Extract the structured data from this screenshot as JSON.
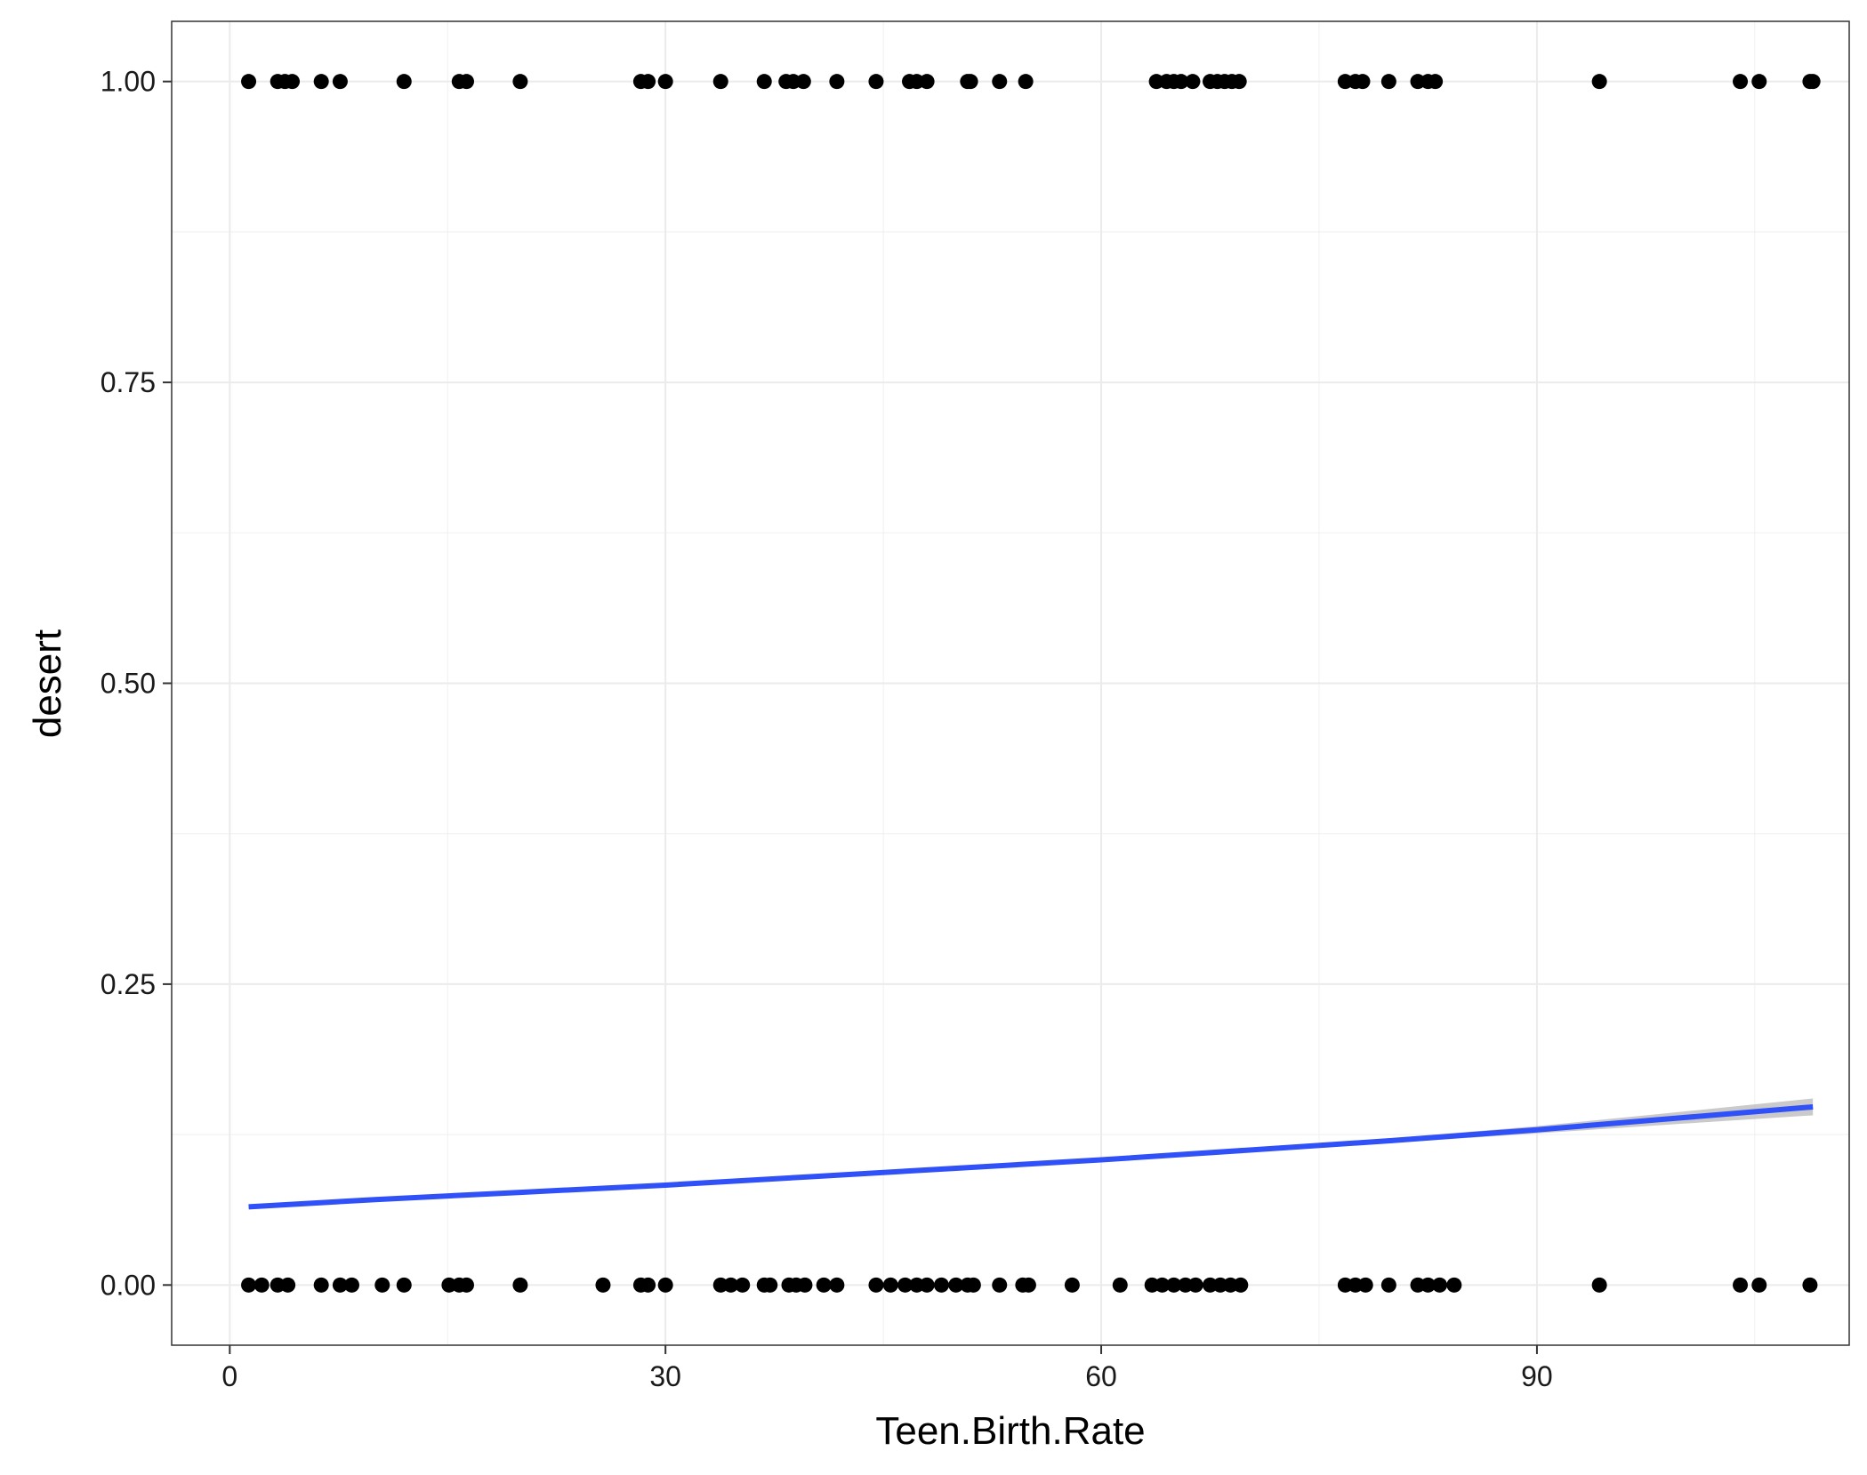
{
  "chart_data": {
    "type": "scatter",
    "xlabel": "Teen.Birth.Rate",
    "ylabel": "desert",
    "xlim": [
      -4,
      111.5
    ],
    "ylim": [
      -0.05,
      1.05
    ],
    "x_ticks": [
      0,
      30,
      60,
      90
    ],
    "x_tick_labels": [
      "0",
      "30",
      "60",
      "90"
    ],
    "y_ticks": [
      0,
      0.25,
      0.5,
      0.75,
      1.0
    ],
    "y_tick_labels": [
      "0.00",
      "0.25",
      "0.50",
      "0.75",
      "1.00"
    ],
    "grid": true,
    "legend": "none",
    "colors": {
      "points": "#000000",
      "fit_line": "#3050f8",
      "band": "#bdbdbd",
      "grid": "#ebebeb",
      "border": "#333333"
    },
    "series": [
      {
        "kind": "points",
        "points": [
          [
            1.3,
            1
          ],
          [
            3.3,
            1
          ],
          [
            3.8,
            1
          ],
          [
            4.3,
            1
          ],
          [
            6.3,
            1
          ],
          [
            7.6,
            1
          ],
          [
            12,
            1
          ],
          [
            15.8,
            1
          ],
          [
            16.3,
            1
          ],
          [
            20,
            1
          ],
          [
            28.3,
            1
          ],
          [
            28.8,
            1
          ],
          [
            30,
            1
          ],
          [
            33.8,
            1
          ],
          [
            36.8,
            1
          ],
          [
            38.3,
            1
          ],
          [
            38.8,
            1
          ],
          [
            39.5,
            1
          ],
          [
            41.8,
            1
          ],
          [
            44.5,
            1
          ],
          [
            46.8,
            1
          ],
          [
            47.3,
            1
          ],
          [
            48,
            1
          ],
          [
            50.8,
            1
          ],
          [
            51,
            1
          ],
          [
            53,
            1
          ],
          [
            54.8,
            1
          ],
          [
            63.8,
            1
          ],
          [
            64.5,
            1
          ],
          [
            65,
            1
          ],
          [
            65.5,
            1
          ],
          [
            66.3,
            1
          ],
          [
            67.5,
            1
          ],
          [
            68,
            1
          ],
          [
            68.5,
            1
          ],
          [
            69,
            1
          ],
          [
            69.5,
            1
          ],
          [
            76.8,
            1
          ],
          [
            77.5,
            1
          ],
          [
            78,
            1
          ],
          [
            79.8,
            1
          ],
          [
            81.8,
            1
          ],
          [
            82.5,
            1
          ],
          [
            83,
            1
          ],
          [
            94.3,
            1
          ],
          [
            104,
            1
          ],
          [
            105.3,
            1
          ],
          [
            108.8,
            1
          ],
          [
            109,
            1
          ],
          [
            1.3,
            0
          ],
          [
            2.2,
            0
          ],
          [
            3.3,
            0
          ],
          [
            4.0,
            0
          ],
          [
            6.3,
            0
          ],
          [
            7.6,
            0
          ],
          [
            8.4,
            0
          ],
          [
            10.5,
            0
          ],
          [
            12,
            0
          ],
          [
            15.1,
            0
          ],
          [
            15.8,
            0
          ],
          [
            16.3,
            0
          ],
          [
            20,
            0
          ],
          [
            25.7,
            0
          ],
          [
            28.3,
            0
          ],
          [
            28.8,
            0
          ],
          [
            30,
            0
          ],
          [
            33.8,
            0
          ],
          [
            34.5,
            0
          ],
          [
            35.3,
            0
          ],
          [
            36.8,
            0
          ],
          [
            37.2,
            0
          ],
          [
            38.5,
            0
          ],
          [
            39,
            0
          ],
          [
            39.6,
            0
          ],
          [
            40.9,
            0
          ],
          [
            41.8,
            0
          ],
          [
            44.5,
            0
          ],
          [
            45.5,
            0
          ],
          [
            46.5,
            0
          ],
          [
            47.3,
            0
          ],
          [
            48,
            0
          ],
          [
            49,
            0
          ],
          [
            50,
            0
          ],
          [
            50.8,
            0
          ],
          [
            51.2,
            0
          ],
          [
            53,
            0
          ],
          [
            54.6,
            0
          ],
          [
            55,
            0
          ],
          [
            58,
            0
          ],
          [
            61.3,
            0
          ],
          [
            63.5,
            0
          ],
          [
            64.2,
            0
          ],
          [
            65,
            0
          ],
          [
            65.8,
            0
          ],
          [
            66.5,
            0
          ],
          [
            67.5,
            0
          ],
          [
            68.2,
            0
          ],
          [
            68.9,
            0
          ],
          [
            69.6,
            0
          ],
          [
            76.8,
            0
          ],
          [
            77.5,
            0
          ],
          [
            78.2,
            0
          ],
          [
            79.8,
            0
          ],
          [
            81.8,
            0
          ],
          [
            82.5,
            0
          ],
          [
            83.3,
            0
          ],
          [
            84.3,
            0
          ],
          [
            94.3,
            0
          ],
          [
            104,
            0
          ],
          [
            105.3,
            0
          ],
          [
            108.8,
            0
          ]
        ]
      },
      {
        "kind": "fit",
        "x": [
          1.3,
          10,
          20,
          30,
          40,
          50,
          60,
          70,
          80,
          90,
          100,
          109
        ],
        "y": [
          0.065,
          0.071,
          0.077,
          0.083,
          0.09,
          0.097,
          0.104,
          0.112,
          0.12,
          0.129,
          0.139,
          0.148
        ],
        "lower": [
          0.064,
          0.07,
          0.076,
          0.082,
          0.089,
          0.096,
          0.103,
          0.11,
          0.118,
          0.126,
          0.134,
          0.141
        ],
        "upper": [
          0.066,
          0.072,
          0.078,
          0.084,
          0.091,
          0.098,
          0.105,
          0.114,
          0.122,
          0.132,
          0.144,
          0.155
        ]
      }
    ]
  }
}
